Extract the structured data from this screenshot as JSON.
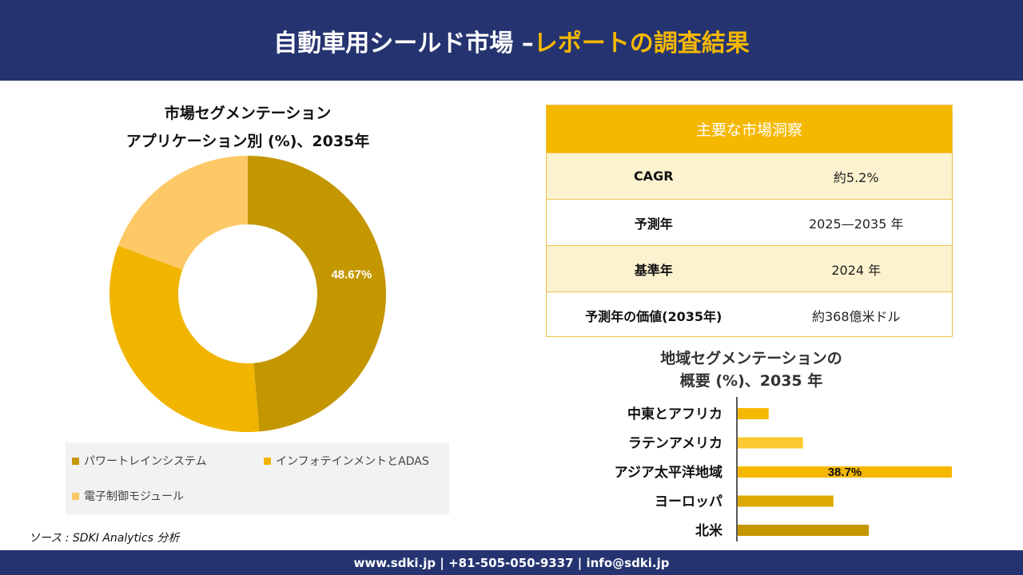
{
  "header": {
    "title_white": "自動車用シールド市場 –",
    "title_gold": "レポートの調査結果"
  },
  "donut": {
    "title_line1": "市場セグメンテーション",
    "title_line2": "アプリケーション別 (%)、2035年"
  },
  "insights": {
    "title": "主要な市場洞察",
    "rows": [
      {
        "key": "CAGR",
        "value": "約5.2%"
      },
      {
        "key": "予測年",
        "value": "2025—2035 年"
      },
      {
        "key": "基準年",
        "value": "2024 年"
      },
      {
        "key": "予測年の価値(2035年)",
        "value": "約368億米ドル"
      }
    ]
  },
  "region": {
    "title_line1": "地域セグメンテーションの",
    "title_line2": "概要 (%)、2035 年"
  },
  "source": "ソース : SDKI Analytics 分析",
  "footer": "www.sdki.jp | +81-505-050-9337 | info@sdki.jp",
  "chart_data": [
    {
      "type": "pie",
      "title": "市場セグメンテーション アプリケーション別 (%)、2035年",
      "categories": [
        "パワートレインシステム",
        "インフォテインメントとADAS",
        "電子制御モジュール"
      ],
      "values": [
        48.67,
        32.0,
        19.33
      ],
      "colors": [
        "#c49600",
        "#f1b500",
        "#fdc967"
      ],
      "labels": [
        "48.67%",
        "",
        ""
      ],
      "legend": "bottom"
    },
    {
      "type": "bar",
      "orientation": "horizontal",
      "title": "地域セグメンテーションの概要 (%)、2035 年",
      "categories": [
        "中東とアフリカ",
        "ラテンアメリカ",
        "アジア太平洋地域",
        "ヨーロッパ",
        "北米"
      ],
      "values": [
        5.6,
        11.8,
        38.7,
        17.3,
        23.7
      ],
      "colors": [
        "#f5b800",
        "#fdc933",
        "#f5b800",
        "#dba900",
        "#c49600"
      ],
      "labels": [
        "",
        "",
        "38.7%",
        "",
        ""
      ],
      "grid": false
    }
  ]
}
